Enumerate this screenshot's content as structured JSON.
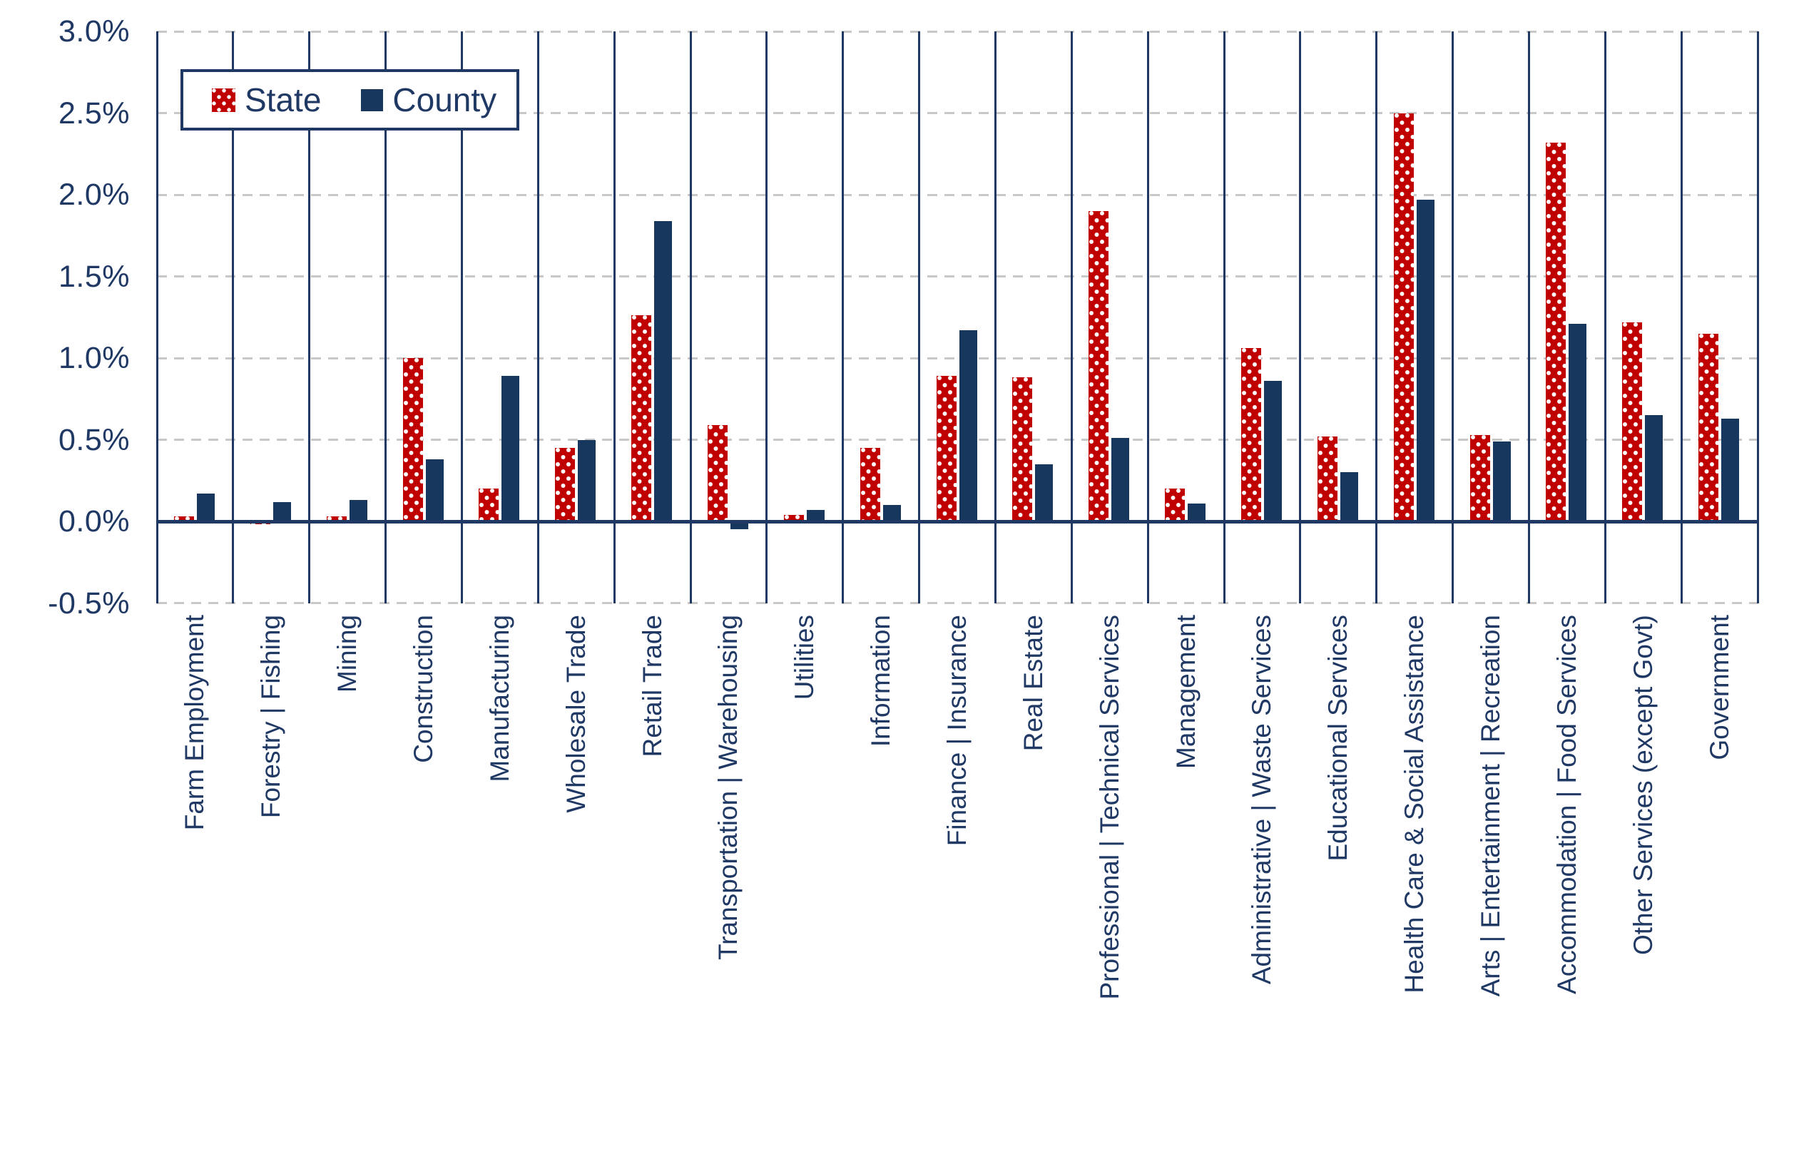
{
  "chart_data": {
    "type": "bar",
    "title": "",
    "categories": [
      "Farm Employment",
      "Forestry | Fishing",
      "Mining",
      "Construction",
      "Manufacturing",
      "Wholesale Trade",
      "Retail Trade",
      "Transportation | Warehousing",
      "Utilities",
      "Information",
      "Finance | Insurance",
      "Real Estate",
      "Professional | Technical Services",
      "Management",
      "Administrative | Waste Services",
      "Educational Services",
      "Health Care & Social Assistance",
      "Arts | Entertainment | Recreation",
      "Accommodation | Food Services",
      "Other Services (except Govt)",
      "Government"
    ],
    "series": [
      {
        "name": "State",
        "color": "#c00000",
        "pattern": "white-dots",
        "values": [
          0.03,
          -0.01,
          0.03,
          1.0,
          0.2,
          0.45,
          1.26,
          0.59,
          0.04,
          0.45,
          0.89,
          0.88,
          1.9,
          0.2,
          1.06,
          0.52,
          2.5,
          0.53,
          2.32,
          1.22,
          1.15
        ]
      },
      {
        "name": "County",
        "color": "#17375e",
        "pattern": "solid",
        "values": [
          0.17,
          0.12,
          0.13,
          0.38,
          0.89,
          0.5,
          1.84,
          -0.04,
          0.07,
          0.1,
          1.17,
          0.35,
          0.51,
          0.11,
          0.86,
          0.3,
          1.97,
          0.49,
          1.21,
          0.65,
          0.63
        ]
      }
    ],
    "y_axis": {
      "min": -0.5,
      "max": 3.0,
      "step": 0.5,
      "format": "percent",
      "ticks": [
        "3.0%",
        "2.5%",
        "2.0%",
        "1.5%",
        "1.0%",
        "0.5%",
        "0.0%",
        "-0.5%"
      ]
    },
    "x_axis": {
      "label_rotation_degrees": 90
    },
    "legend": {
      "position": "top-left",
      "entries": [
        "State",
        "County"
      ]
    },
    "grid": "horizontal-dashed",
    "gridline_color": "#c8c8c8",
    "axis_line_color": "#1f3864",
    "text_color": "#1f3864"
  }
}
